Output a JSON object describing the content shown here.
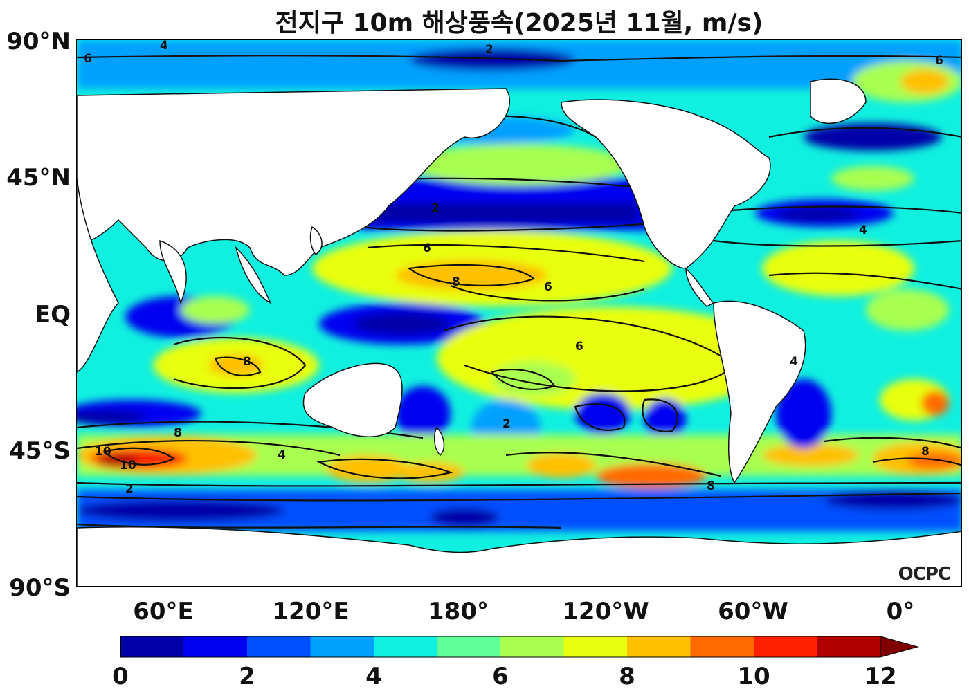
{
  "title": "전지구 10m 해상풍속(2025년 11월, m/s)",
  "logo": "OCPC",
  "lat_labels": [
    "90°N",
    "45°N",
    "EQ",
    "45°S",
    "90°S"
  ],
  "lon_labels": [
    "60°E",
    "120°E",
    "180°",
    "120°W",
    "60°W",
    "0°"
  ],
  "colorbar": {
    "tick_labels": [
      "0",
      "2",
      "4",
      "6",
      "8",
      "10",
      "12"
    ],
    "min": 0,
    "max": 12,
    "extend": "max",
    "colors": [
      "#0000a8",
      "#0000f0",
      "#0050ff",
      "#00a0ff",
      "#10f0e0",
      "#60ff98",
      "#a8ff50",
      "#e8ff10",
      "#ffc000",
      "#ff6a00",
      "#ff2000",
      "#b00000",
      "#800000"
    ]
  },
  "contour_labels": [
    "2",
    "4",
    "6",
    "8",
    "10"
  ]
}
